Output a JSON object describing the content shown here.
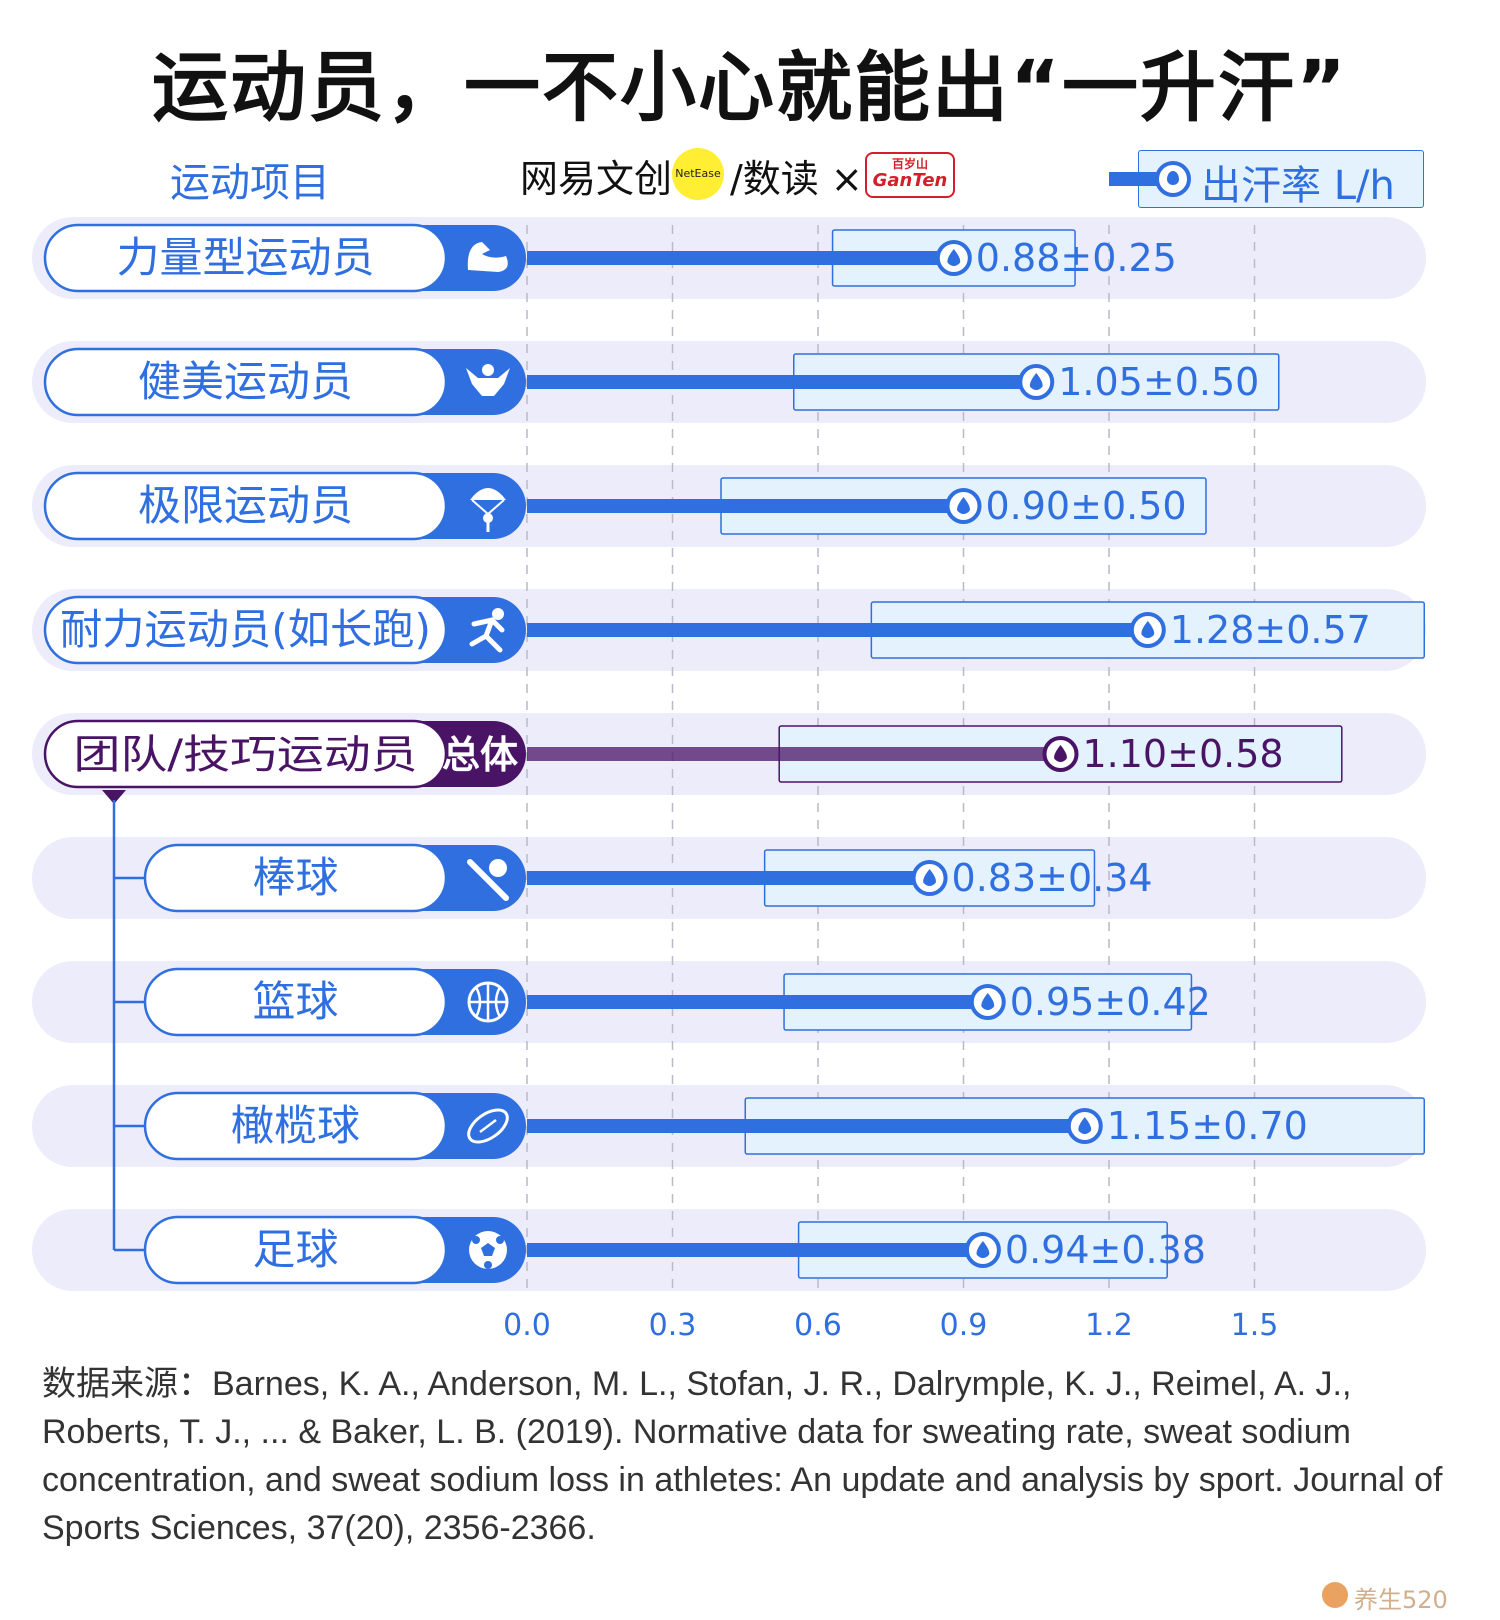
{
  "title": "运动员，一不小心就能出“一升汗”",
  "header": {
    "category_label": "运动项目",
    "brand_left": "网易文创",
    "brand_dot": "NetEase",
    "brand_right": "/数读 ×",
    "partner_logo_top": "百岁山",
    "partner_logo_bottom": "GanTen",
    "legend_label": "出汗率 L/h"
  },
  "colors": {
    "accent_blue": "#2f6fdf",
    "accent_purple": "#4a1466",
    "range_fill": "#e4f2fd",
    "row_band": "#ececfa"
  },
  "chart_data": {
    "type": "bar",
    "title": "运动员，一不小心就能出“一升汗”",
    "xlabel": "",
    "ylabel": "运动项目",
    "xlim": [
      0,
      1.8
    ],
    "xticks": [
      0.0,
      0.3,
      0.6,
      0.9,
      1.2,
      1.5
    ],
    "xtick_labels": [
      "0.0",
      "0.3",
      "0.6",
      "0.9",
      "1.2",
      "1.5"
    ],
    "series": [
      {
        "name": "出汗率 L/h"
      }
    ],
    "categories": [
      {
        "label": "力量型运动员",
        "icon": "muscle-icon",
        "mean": 0.88,
        "sd": 0.25,
        "value_label": "0.88±0.25",
        "group": "main"
      },
      {
        "label": "健美运动员",
        "icon": "bodybuilder-icon",
        "mean": 1.05,
        "sd": 0.5,
        "value_label": "1.05±0.50",
        "group": "main"
      },
      {
        "label": "极限运动员",
        "icon": "parachute-icon",
        "mean": 0.9,
        "sd": 0.5,
        "value_label": "0.90±0.50",
        "group": "main"
      },
      {
        "label": "耐力运动员(如长跑)",
        "icon": "runner-icon",
        "mean": 1.28,
        "sd": 0.57,
        "value_label": "1.28±0.57",
        "group": "main"
      },
      {
        "label": "团队/技巧运动员",
        "icon_text": "总体",
        "mean": 1.1,
        "sd": 0.58,
        "value_label": "1.10±0.58",
        "group": "total"
      },
      {
        "label": "棒球",
        "icon": "baseball-icon",
        "mean": 0.83,
        "sd": 0.34,
        "value_label": "0.83±0.34",
        "group": "sub"
      },
      {
        "label": "篮球",
        "icon": "basketball-icon",
        "mean": 0.95,
        "sd": 0.42,
        "value_label": "0.95±0.42",
        "group": "sub"
      },
      {
        "label": "橄榄球",
        "icon": "rugby-ball-icon",
        "mean": 1.15,
        "sd": 0.7,
        "value_label": "1.15±0.70",
        "group": "sub"
      },
      {
        "label": "足球",
        "icon": "soccer-ball-icon",
        "mean": 0.94,
        "sd": 0.38,
        "value_label": "0.94±0.38",
        "group": "sub"
      }
    ]
  },
  "source": "数据来源：Barnes, K. A., Anderson, M. L., Stofan, J. R., Dalrymple, K. J., Reimel, A. J., Roberts, T. J., ... & Baker, L. B. (2019). Normative data for sweating rate, sweat sodium concentration, and sweat sodium loss in athletes: An update and analysis by sport. Journal of Sports Sciences, 37(20), 2356-2366.",
  "watermark": "养生520"
}
